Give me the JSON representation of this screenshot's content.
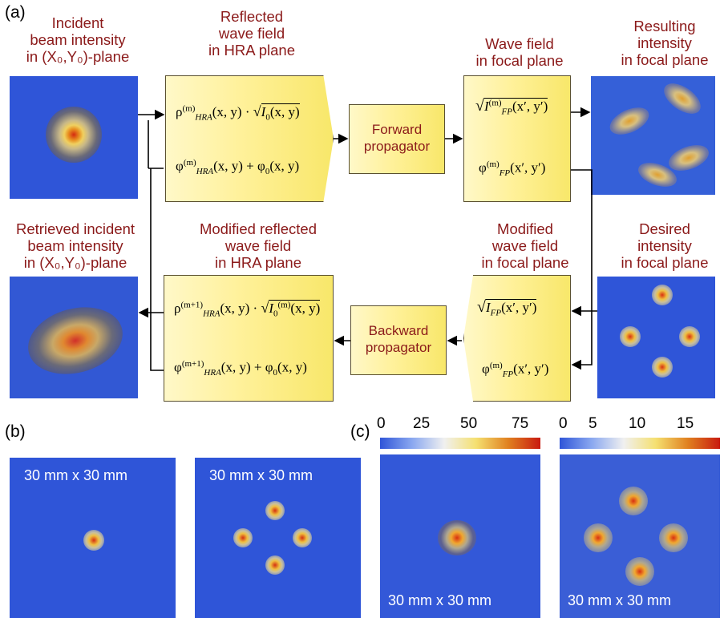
{
  "panel_labels": {
    "a": "(a)",
    "b": "(b)",
    "c": "(c)"
  },
  "captions": {
    "incident": [
      "Incident",
      "beam intensity",
      "in (X₀,Y₀)-plane"
    ],
    "reflected": [
      "Reflected",
      "wave field",
      "in HRA plane"
    ],
    "wave_focal": [
      "Wave field",
      "in focal plane"
    ],
    "resulting": [
      "Resulting",
      "intensity",
      "in focal plane"
    ],
    "retrieved": [
      "Retrieved incident",
      "beam intensity",
      "in (X₀,Y₀)-plane"
    ],
    "modified_reflected": [
      "Modified reflected",
      "wave field",
      "in HRA plane"
    ],
    "modified_wave": [
      "Modified",
      "wave field",
      "in focal plane"
    ],
    "desired": [
      "Desired",
      "intensity",
      "in focal plane"
    ]
  },
  "propagators": {
    "forward": [
      "Forward",
      "propagator"
    ],
    "backward": [
      "Backward",
      "propagator"
    ]
  },
  "formulas": {
    "reflected_amp": {
      "sym": "ρ",
      "sup": "(m)",
      "sub": "HRA",
      "args": "(x, y) · ",
      "root_base": "I",
      "root_sub": "0",
      "root_sup": "",
      "root_args": "(x, y)"
    },
    "reflected_phase": {
      "sym": "φ",
      "sup": "(m)",
      "sub": "HRA",
      "args": "(x, y) + φ",
      "tail_sub": "0",
      "tail": "(x, y)"
    },
    "focal_amp": {
      "root_base": "I",
      "root_sup": "(m)",
      "root_sub": "FP",
      "root_args": "(x′, y′)"
    },
    "focal_phase": {
      "sym": "φ",
      "sup": "(m)",
      "sub": "FP",
      "args": "(x′, y′)"
    },
    "mod_focal_amp": {
      "root_base": "I",
      "root_sup": "",
      "root_sub": "FP",
      "root_args": "(x′, y′)"
    },
    "mod_focal_phase": {
      "sym": "φ",
      "sup": "(m)",
      "sub": "FP",
      "args": "(x′, y′)"
    },
    "mod_reflected_amp": {
      "sym": "ρ",
      "sup": "(m+1)",
      "sub": "HRA",
      "args": "(x, y) · ",
      "root_base": "I",
      "root_sub": "0",
      "root_sup": "(m)",
      "root_args": "(x, y)"
    },
    "mod_reflected_phase": {
      "sym": "φ",
      "sup": "(m+1)",
      "sub": "HRA",
      "args": "(x, y) + φ",
      "tail_sub": "0",
      "tail": "(x, y)"
    }
  },
  "tiles": {
    "b_left": "30 mm x 30 mm",
    "b_right": "30 mm x 30 mm",
    "c_left": "30 mm x 30 mm",
    "c_right": "30 mm x 30 mm"
  },
  "colorbars": {
    "left": {
      "ticks": [
        "0",
        "25",
        "50",
        "75"
      ]
    },
    "right": {
      "ticks": [
        "0",
        "5",
        "10",
        "15"
      ]
    }
  },
  "colors": {
    "background": "#2f55d8",
    "caption": "#8b1a1a",
    "box_fill": "#fff19a"
  }
}
